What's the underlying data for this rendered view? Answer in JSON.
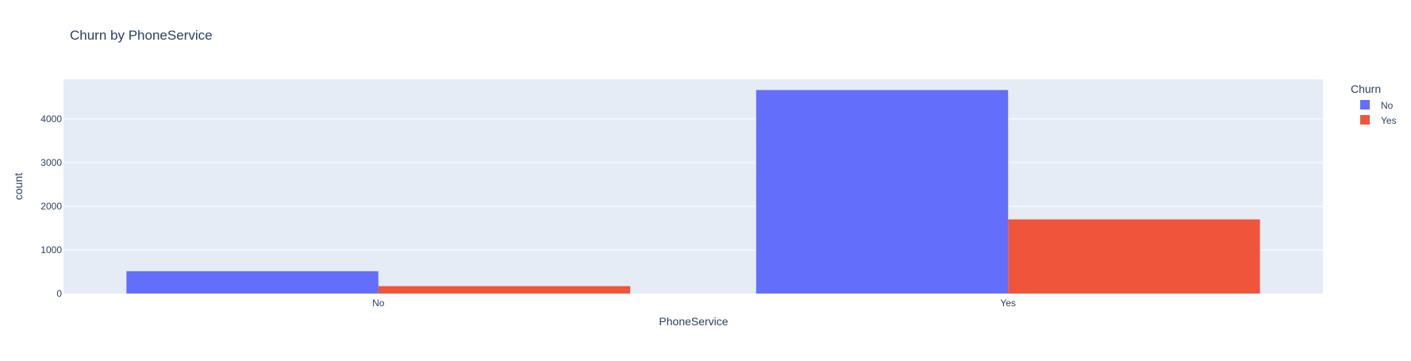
{
  "chart_data": {
    "type": "bar",
    "title": "Churn by PhoneService",
    "xlabel": "PhoneService",
    "ylabel": "count",
    "categories": [
      "No",
      "Yes"
    ],
    "series": [
      {
        "name": "No",
        "values": [
          512,
          4662
        ],
        "color": "#636efa"
      },
      {
        "name": "Yes",
        "values": [
          170,
          1699
        ],
        "color": "#ef553b"
      }
    ],
    "ylim": [
      0,
      4907
    ],
    "yticks": [
      0,
      1000,
      2000,
      3000,
      4000
    ],
    "legend": {
      "title": "Churn",
      "placement": "right"
    },
    "grid": true,
    "plot_background": "#e5ecf6",
    "text_color": "#2a3f5f"
  }
}
